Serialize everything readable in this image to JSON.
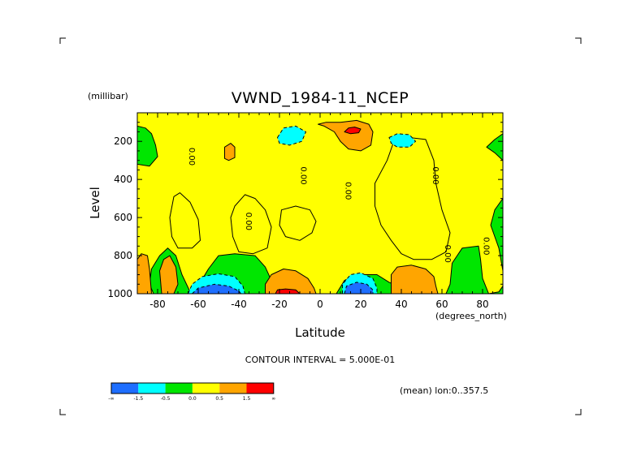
{
  "chart_data": {
    "type": "heatmap",
    "title": "VWND_1984-11_NCEP",
    "xlabel": "Latitude",
    "ylabel": "Level",
    "xunit": "(degrees_north)",
    "yunit": "(millibar)",
    "xlim": [
      -90,
      90
    ],
    "ylim": [
      1000,
      50
    ],
    "x_ticks": [
      {
        "v": -80,
        "label": "-80"
      },
      {
        "v": -60,
        "label": "-60"
      },
      {
        "v": -40,
        "label": "-40"
      },
      {
        "v": -20,
        "label": "-20"
      },
      {
        "v": 0,
        "label": "0"
      },
      {
        "v": 20,
        "label": "20"
      },
      {
        "v": 40,
        "label": "40"
      },
      {
        "v": 60,
        "label": "60"
      },
      {
        "v": 80,
        "label": "80"
      }
    ],
    "y_ticks": [
      {
        "v": 200,
        "label": "200"
      },
      {
        "v": 400,
        "label": "400"
      },
      {
        "v": 600,
        "label": "600"
      },
      {
        "v": 800,
        "label": "800"
      },
      {
        "v": 1000,
        "label": "1000"
      }
    ],
    "contour_interval_text": "CONTOUR INTERVAL = 5.000E-01",
    "mean_text": "(mean) lon:0..357.5",
    "colorbar": {
      "colors": [
        "#1e6eff",
        "#00ffff",
        "#00e600",
        "#ffff00",
        "#ffa500",
        "#ff0000"
      ],
      "labels": [
        "-∞",
        "-1.5",
        "-0.5",
        "0.0",
        "0.5",
        "1.5",
        "∞"
      ]
    },
    "contour_labels": [
      {
        "text": "0.00",
        "lat": -63,
        "lev": 280
      },
      {
        "text": "0.00",
        "lat": -8,
        "lev": 380
      },
      {
        "text": "0.00",
        "lat": 14,
        "lev": 460
      },
      {
        "text": "0.00",
        "lat": -35,
        "lev": 620
      },
      {
        "text": "0.00",
        "lat": 57,
        "lev": 380
      },
      {
        "text": "0.00",
        "lat": 63,
        "lev": 790
      },
      {
        "text": "0.00",
        "lat": 82,
        "lev": 750
      }
    ],
    "regions": [
      {
        "level": "yellow",
        "poly": [
          [
            -82,
            1000
          ],
          [
            -84,
            950
          ],
          [
            -83,
            870
          ],
          [
            -79,
            800
          ],
          [
            -75,
            760
          ],
          [
            -71,
            800
          ],
          [
            -68,
            900
          ],
          [
            -64,
            990
          ],
          [
            -60,
            960
          ],
          [
            -55,
            870
          ],
          [
            -50,
            800
          ],
          [
            -42,
            790
          ],
          [
            -32,
            800
          ],
          [
            -27,
            860
          ],
          [
            -24,
            930
          ],
          [
            -14,
            930
          ],
          [
            -6,
            960
          ],
          [
            -2,
            1000
          ],
          [
            8,
            1000
          ],
          [
            12,
            930
          ],
          [
            18,
            900
          ],
          [
            28,
            900
          ],
          [
            34,
            940
          ],
          [
            38,
            960
          ],
          [
            42,
            880
          ],
          [
            48,
            870
          ],
          [
            52,
            900
          ],
          [
            54,
            960
          ],
          [
            58,
            1000
          ],
          [
            62,
            1000
          ],
          [
            64,
            950
          ],
          [
            65,
            840
          ],
          [
            70,
            760
          ],
          [
            78,
            750
          ],
          [
            79,
            820
          ],
          [
            80,
            920
          ],
          [
            83,
            1000
          ],
          [
            88,
            990
          ],
          [
            90,
            960
          ],
          [
            90,
            880
          ],
          [
            88,
            760
          ],
          [
            84,
            640
          ],
          [
            86,
            560
          ],
          [
            90,
            500
          ],
          [
            90,
            300
          ],
          [
            86,
            260
          ],
          [
            82,
            230
          ],
          [
            86,
            190
          ],
          [
            90,
            160
          ],
          [
            90,
            50
          ],
          [
            -90,
            50
          ],
          [
            -90,
            120
          ],
          [
            -86,
            130
          ],
          [
            -83,
            160
          ],
          [
            -81,
            220
          ],
          [
            -80,
            280
          ],
          [
            -84,
            330
          ],
          [
            -90,
            320
          ],
          [
            -90,
            1000
          ]
        ]
      },
      {
        "level": "yellow",
        "poly": [
          [
            -72,
            490
          ],
          [
            -69,
            470
          ],
          [
            -64,
            520
          ],
          [
            -60,
            610
          ],
          [
            -59,
            720
          ],
          [
            -63,
            760
          ],
          [
            -70,
            760
          ],
          [
            -73,
            700
          ],
          [
            -74,
            600
          ]
        ]
      },
      {
        "level": "yellow",
        "poly": [
          [
            -42,
            540
          ],
          [
            -37,
            480
          ],
          [
            -32,
            500
          ],
          [
            -27,
            560
          ],
          [
            -24,
            650
          ],
          [
            -26,
            760
          ],
          [
            -33,
            790
          ],
          [
            -40,
            780
          ],
          [
            -43,
            700
          ],
          [
            -44,
            600
          ]
        ]
      },
      {
        "level": "yellow",
        "poly": [
          [
            -19,
            560
          ],
          [
            -12,
            540
          ],
          [
            -5,
            560
          ],
          [
            -2,
            620
          ],
          [
            -4,
            680
          ],
          [
            -10,
            720
          ],
          [
            -17,
            700
          ],
          [
            -20,
            640
          ]
        ]
      },
      {
        "level": "yellow",
        "poly": [
          [
            27,
            420
          ],
          [
            33,
            300
          ],
          [
            37,
            180
          ],
          [
            44,
            180
          ],
          [
            52,
            190
          ],
          [
            56,
            300
          ],
          [
            57,
            420
          ],
          [
            60,
            560
          ],
          [
            64,
            680
          ],
          [
            62,
            780
          ],
          [
            55,
            820
          ],
          [
            46,
            820
          ],
          [
            40,
            790
          ],
          [
            35,
            720
          ],
          [
            30,
            640
          ],
          [
            27,
            540
          ]
        ]
      },
      {
        "level": "orange",
        "poly": [
          [
            -90,
            1000
          ],
          [
            -90,
            820
          ],
          [
            -88,
            790
          ],
          [
            -85,
            800
          ],
          [
            -84,
            870
          ],
          [
            -83,
            1000
          ]
        ]
      },
      {
        "level": "orange",
        "poly": [
          [
            -78,
            1000
          ],
          [
            -79,
            880
          ],
          [
            -77,
            820
          ],
          [
            -74,
            800
          ],
          [
            -71,
            860
          ],
          [
            -70,
            950
          ],
          [
            -72,
            1000
          ]
        ]
      },
      {
        "level": "orange",
        "poly": [
          [
            -27,
            1000
          ],
          [
            -27,
            950
          ],
          [
            -24,
            900
          ],
          [
            -18,
            870
          ],
          [
            -12,
            880
          ],
          [
            -6,
            920
          ],
          [
            -3,
            970
          ],
          [
            -2,
            1000
          ]
        ]
      },
      {
        "level": "orange",
        "poly": [
          [
            35,
            1000
          ],
          [
            35,
            900
          ],
          [
            38,
            860
          ],
          [
            45,
            850
          ],
          [
            52,
            870
          ],
          [
            56,
            910
          ],
          [
            57,
            960
          ],
          [
            58,
            1000
          ]
        ]
      },
      {
        "level": "orange",
        "poly": [
          [
            -47,
            290
          ],
          [
            -47,
            230
          ],
          [
            -44,
            210
          ],
          [
            -42,
            230
          ],
          [
            -42,
            285
          ],
          [
            -45,
            300
          ]
        ]
      },
      {
        "level": "orange",
        "poly": [
          [
            -1,
            110
          ],
          [
            3,
            100
          ],
          [
            10,
            100
          ],
          [
            18,
            90
          ],
          [
            24,
            110
          ],
          [
            26,
            150
          ],
          [
            25,
            220
          ],
          [
            20,
            250
          ],
          [
            14,
            240
          ],
          [
            10,
            200
          ],
          [
            7,
            150
          ],
          [
            2,
            120
          ]
        ]
      },
      {
        "level": "red",
        "poly": [
          [
            -22,
            1000
          ],
          [
            -21,
            980
          ],
          [
            -17,
            975
          ],
          [
            -12,
            980
          ],
          [
            -10,
            1000
          ]
        ]
      },
      {
        "level": "red",
        "poly": [
          [
            12,
            150
          ],
          [
            14,
            130
          ],
          [
            17,
            125
          ],
          [
            20,
            135
          ],
          [
            19,
            155
          ],
          [
            15,
            160
          ]
        ]
      },
      {
        "level": "cyan",
        "poly": [
          [
            -65,
            1000
          ],
          [
            -63,
            950
          ],
          [
            -58,
            910
          ],
          [
            -50,
            895
          ],
          [
            -42,
            910
          ],
          [
            -38,
            960
          ],
          [
            -37,
            1000
          ]
        ]
      },
      {
        "level": "cyan",
        "poly": [
          [
            11,
            1000
          ],
          [
            11,
            950
          ],
          [
            15,
            900
          ],
          [
            20,
            890
          ],
          [
            26,
            920
          ],
          [
            28,
            970
          ],
          [
            28,
            1000
          ]
        ]
      },
      {
        "level": "cyan",
        "poly": [
          [
            -21,
            180
          ],
          [
            -18,
            130
          ],
          [
            -12,
            120
          ],
          [
            -7,
            150
          ],
          [
            -9,
            200
          ],
          [
            -15,
            220
          ],
          [
            -20,
            210
          ]
        ]
      },
      {
        "level": "cyan",
        "poly": [
          [
            34,
            180
          ],
          [
            38,
            160
          ],
          [
            44,
            165
          ],
          [
            47,
            200
          ],
          [
            44,
            230
          ],
          [
            38,
            230
          ],
          [
            35,
            210
          ]
        ]
      },
      {
        "level": "blue",
        "poly": [
          [
            -63,
            1000
          ],
          [
            -60,
            970
          ],
          [
            -52,
            950
          ],
          [
            -45,
            960
          ],
          [
            -40,
            985
          ],
          [
            -39,
            1000
          ]
        ]
      },
      {
        "level": "blue",
        "poly": [
          [
            12,
            1000
          ],
          [
            13,
            960
          ],
          [
            18,
            940
          ],
          [
            23,
            950
          ],
          [
            26,
            980
          ],
          [
            26,
            1000
          ]
        ]
      }
    ]
  }
}
